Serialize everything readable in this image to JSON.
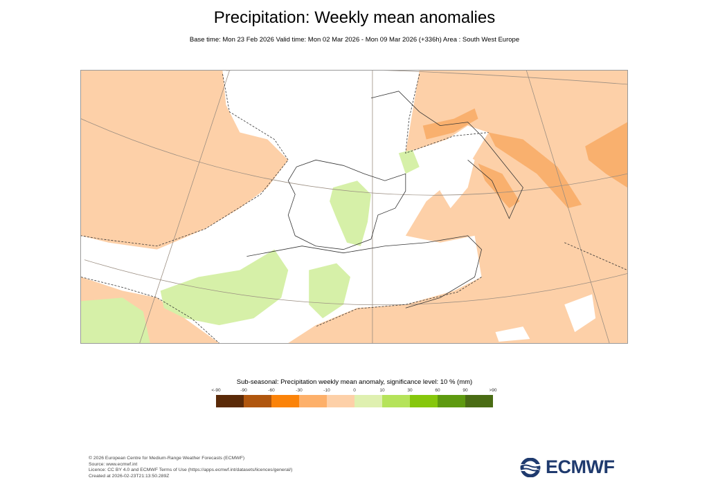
{
  "title": "Precipitation: Weekly mean anomalies",
  "subtitle": "Base time: Mon 23 Feb 2026 Valid time: Mon 02 Mar 2026 - Mon 09 Mar 2026 (+336h) Area : South West Europe",
  "map": {
    "area": "South West Europe",
    "colors": {
      "background_anomaly": "#fdd0a8",
      "neutral": "#ffffff",
      "wet": "#d6f0a8",
      "dry_strong": "#f9b06e"
    }
  },
  "legend": {
    "title": "Sub-seasonal: Precipitation weekly mean anomaly, significance level: 10 % (mm)",
    "ticks": [
      "<-90",
      "-90",
      "-60",
      "-30",
      "-10",
      "0",
      "10",
      "30",
      "60",
      "90",
      ">90"
    ],
    "colors": [
      "#5a2a08",
      "#b0560e",
      "#fb8309",
      "#fdb06a",
      "#fdd0a8",
      "#dff0b0",
      "#b5e35a",
      "#86c70c",
      "#5e9a10",
      "#4a6c14"
    ]
  },
  "footer": {
    "lines": [
      "© 2026 European Centre for Medium-Range Weather Forecasts (ECMWF)",
      "Source: www.ecmwf.int",
      "Licence: CC BY 4.0 and ECMWF Terms of Use (https://apps.ecmwf.int/datasets/licences/general/)",
      "Created at 2026-02-23T21:13:50.289Z"
    ]
  },
  "logo": {
    "text": "ECMWF"
  }
}
